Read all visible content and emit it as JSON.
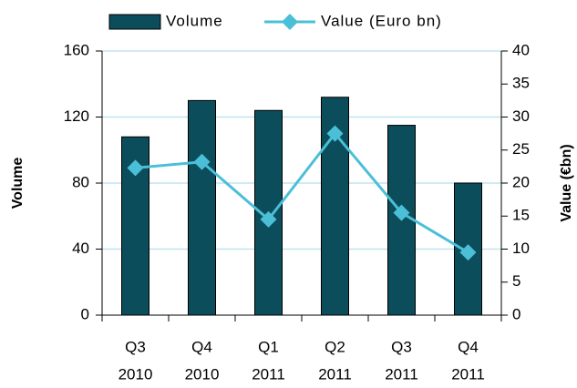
{
  "chart_data": {
    "type": "bar_line",
    "categories": [
      [
        "Q3",
        "2010"
      ],
      [
        "Q4",
        "2010"
      ],
      [
        "Q1",
        "2011"
      ],
      [
        "Q2",
        "2011"
      ],
      [
        "Q3",
        "2011"
      ],
      [
        "Q4",
        "2011"
      ]
    ],
    "series": [
      {
        "name": "Volume",
        "color": "#0b4d5a",
        "type": "bar",
        "values": [
          108,
          130,
          124,
          132,
          115,
          80
        ]
      },
      {
        "name": "Value (Euro bn)",
        "color": "#4bbfd8",
        "type": "line",
        "axis": "y2",
        "values": [
          22.3,
          23.2,
          14.5,
          27.5,
          15.5,
          9.5
        ]
      }
    ],
    "y_label": "Volume",
    "y2_label": "Value (€bn)",
    "ylim": [
      0,
      160
    ],
    "yticks": [
      0,
      40,
      80,
      120,
      160
    ],
    "y2lim": [
      0,
      40
    ],
    "y2ticks": [
      0,
      5,
      10,
      15,
      20,
      25,
      30,
      35,
      40
    ],
    "grid": true,
    "legend": "top"
  }
}
